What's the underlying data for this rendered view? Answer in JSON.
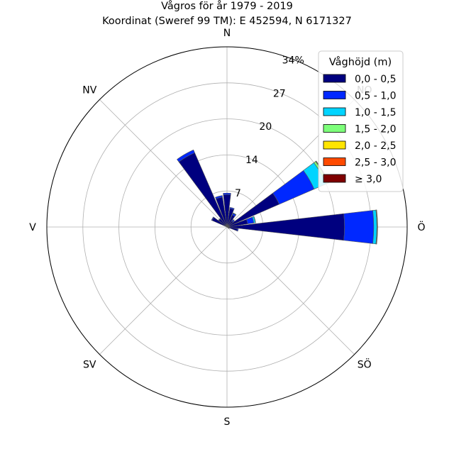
{
  "chart_data": {
    "type": "windrose",
    "title_line1": "Vågros för år 1979 - 2019",
    "title_line2": "Koordinat (Sweref 99 TM): E 452594, N 6171327",
    "direction_labels": [
      "N",
      "NO",
      "Ö",
      "SÖ",
      "S",
      "SV",
      "V",
      "NV"
    ],
    "r_ticks": [
      "7",
      "14",
      "20",
      "27",
      "34%"
    ],
    "r_tick_values": [
      6.9,
      13.8,
      20.7,
      27.6,
      34.5
    ],
    "r_max": 34.5,
    "grid": true,
    "legend_title": "Våghöjd (m)",
    "legend_position": "top-right",
    "bins": [
      {
        "label": "0,0 - 0,5",
        "color": "#00007f"
      },
      {
        "label": "0,5 - 1,0",
        "color": "#0028ff"
      },
      {
        "label": "1,0 - 1,5",
        "color": "#00d4ff"
      },
      {
        "label": "1,5 - 2,0",
        "color": "#7dff7a"
      },
      {
        "label": "2,0 - 2,5",
        "color": "#ffe500"
      },
      {
        "label": "2,5 - 3,0",
        "color": "#ff4a00"
      },
      {
        "label": "≥ 3,0",
        "color": "#7f0000"
      }
    ],
    "sectors": [
      {
        "direction": 0,
        "values": [
          6.2,
          0.3,
          0,
          0,
          0,
          0,
          0
        ]
      },
      {
        "direction": 15,
        "values": [
          3.6,
          0.2,
          0,
          0,
          0,
          0,
          0
        ]
      },
      {
        "direction": 30,
        "values": [
          2.5,
          0.35,
          0.1,
          0,
          0,
          0,
          0
        ]
      },
      {
        "direction": 45,
        "values": [
          1.5,
          0.3,
          0.05,
          0,
          0,
          0,
          0
        ]
      },
      {
        "direction": 60,
        "values": [
          10.9,
          7.3,
          2.5,
          0.4,
          0.1,
          0.05,
          0
        ]
      },
      {
        "direction": 75,
        "values": [
          4.0,
          1.2,
          0.3,
          0.05,
          0,
          0,
          0
        ]
      },
      {
        "direction": 90,
        "values": [
          22.5,
          5.6,
          0.6,
          0.1,
          0.05,
          0,
          0
        ]
      },
      {
        "direction": 105,
        "values": [
          2.0,
          0.2,
          0,
          0,
          0,
          0,
          0
        ]
      },
      {
        "direction": 120,
        "values": [
          0.5,
          0,
          0,
          0,
          0,
          0,
          0
        ]
      },
      {
        "direction": 300,
        "values": [
          3.1,
          0.15,
          0,
          0,
          0,
          0,
          0
        ]
      },
      {
        "direction": 315,
        "values": [
          2.0,
          0.1,
          0,
          0,
          0,
          0,
          0
        ]
      },
      {
        "direction": 330,
        "values": [
          15.5,
          0.6,
          0,
          0,
          0,
          0,
          0
        ]
      },
      {
        "direction": 345,
        "values": [
          5.8,
          0.3,
          0,
          0,
          0,
          0,
          0
        ]
      }
    ]
  }
}
